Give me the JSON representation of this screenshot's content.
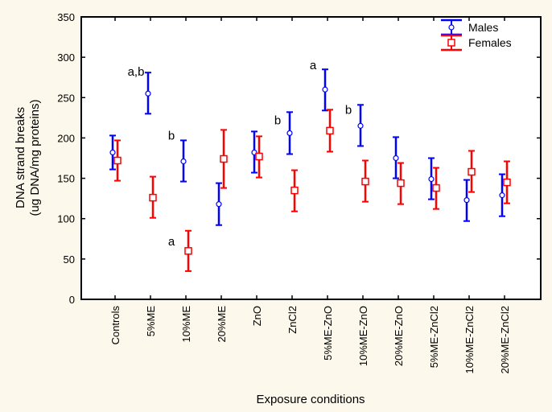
{
  "chart_data": {
    "type": "errorbar",
    "title": "",
    "xlabel": "Exposure conditions",
    "ylabel": [
      "DNA strand breaks",
      "(ug DNA/mg proteins)"
    ],
    "ylim": [
      0,
      350
    ],
    "yticks": [
      0,
      50,
      100,
      150,
      200,
      250,
      300,
      350
    ],
    "grid": false,
    "legend_position": "top-right",
    "categories": [
      "Controls",
      "5%ME",
      "10%ME",
      "20%ME",
      "ZnO",
      "ZnCl2",
      "5%ME-ZnO",
      "10%ME-ZnO",
      "20%ME-ZnO",
      "5%ME-ZnCl2",
      "10%ME-ZnCl2",
      "20%ME-ZnCl2"
    ],
    "series": [
      {
        "name": "Males",
        "color": "#0000ff",
        "marker": "circle",
        "values": [
          182,
          255,
          171,
          118,
          182,
          206,
          260,
          215,
          175,
          149,
          123,
          129
        ],
        "lower": [
          161,
          230,
          146,
          92,
          157,
          180,
          234,
          190,
          150,
          124,
          97,
          103
        ],
        "upper": [
          203,
          281,
          197,
          144,
          208,
          232,
          285,
          241,
          201,
          175,
          148,
          155
        ]
      },
      {
        "name": "Females",
        "color": "#ff0000",
        "marker": "square",
        "values": [
          172,
          126,
          60,
          174,
          177,
          135,
          209,
          146,
          144,
          138,
          158,
          145
        ],
        "lower": [
          147,
          101,
          35,
          138,
          151,
          109,
          183,
          121,
          118,
          112,
          133,
          119
        ],
        "upper": [
          197,
          152,
          85,
          210,
          202,
          160,
          235,
          172,
          169,
          163,
          184,
          171
        ]
      }
    ],
    "annotations": [
      {
        "text": "a,b",
        "category": "5%ME",
        "y": 282
      },
      {
        "text": "b",
        "category": "10%ME",
        "y": 203
      },
      {
        "text": "a",
        "category": "10%ME",
        "y": 72
      },
      {
        "text": "b",
        "category": "ZnCl2",
        "y": 222
      },
      {
        "text": "a",
        "category": "5%ME-ZnO",
        "y": 290
      },
      {
        "text": "b",
        "category": "10%ME-ZnO",
        "y": 235
      }
    ]
  }
}
